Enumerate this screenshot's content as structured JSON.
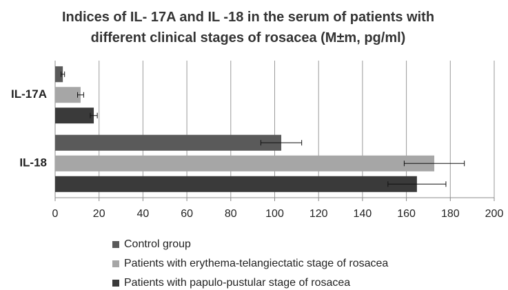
{
  "chart_data": {
    "type": "hbar",
    "title": "Indices of IL- 17A and IL -18 in the serum of patients with different clinical stages of rosacea (M±m, pg/ml)",
    "categories": [
      "IL-17A",
      "IL-18"
    ],
    "series": [
      {
        "name": "Control group",
        "color": "#5a5a5a",
        "values": [
          3.5,
          103
        ],
        "errors": [
          0.8,
          9.3
        ]
      },
      {
        "name": "Patients with erythema-telangiectatic stage of rosacea",
        "color": "#a6a6a6",
        "values": [
          11.6,
          172.7
        ],
        "errors": [
          1.4,
          13.7
        ]
      },
      {
        "name": "Patients with papulo-pustular stage of rosacea",
        "color": "#3a3a3a",
        "values": [
          17.6,
          164.8
        ],
        "errors": [
          1.6,
          13.2
        ]
      }
    ],
    "xlim": [
      0,
      200
    ],
    "xticks": [
      0,
      20,
      40,
      60,
      80,
      100,
      120,
      140,
      160,
      180,
      200
    ],
    "grid": true
  }
}
